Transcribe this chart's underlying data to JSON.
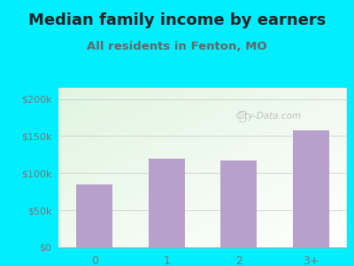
{
  "title": "Median family income by earners",
  "subtitle": "All residents in Fenton, MO",
  "categories": [
    "0",
    "1",
    "2",
    "3+"
  ],
  "values": [
    85000,
    120000,
    117000,
    158000
  ],
  "bar_color": "#b8a0cc",
  "title_fontsize": 13,
  "subtitle_fontsize": 9.5,
  "ylabel_ticks": [
    0,
    50000,
    100000,
    150000,
    200000
  ],
  "ylabel_labels": [
    "$0",
    "$50k",
    "$100k",
    "$150k",
    "$200k"
  ],
  "ylim": [
    0,
    215000
  ],
  "background_outer": "#00eeff",
  "watermark": "City-Data.com",
  "title_color": "#222222",
  "subtitle_color": "#666666",
  "tick_color": "#777777",
  "grid_color": "#cccccc",
  "bar_width": 0.5
}
